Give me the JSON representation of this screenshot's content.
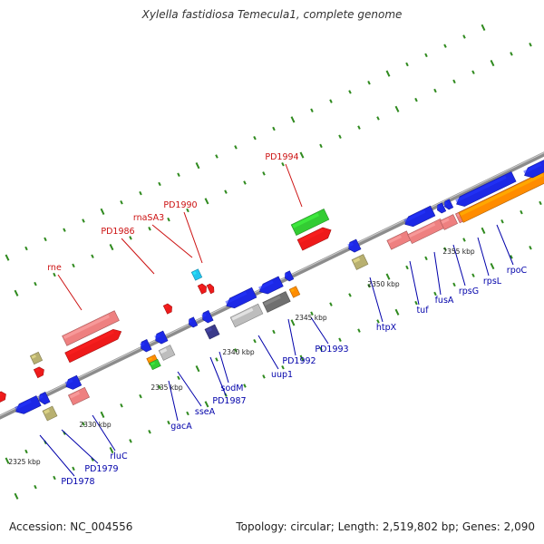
{
  "title": "Xylella fastidiosa Temecula1, complete genome",
  "footer": {
    "accession": "Accession: NC_004556",
    "topology": "Topology: circular; Length: 2,519,802 bp; Genes: 2,090"
  },
  "colors": {
    "backbone": "#8c8c8c",
    "tick": "#2f8a1e",
    "label_top": "#cc1111",
    "label_bottom": "#0000aa",
    "blue": "#1c28e6",
    "red": "#ee1a1a",
    "pink": "#ee8080",
    "green": "#33cc33",
    "orange": "#ff8c00",
    "gray": "#bdbdbd",
    "darkgray": "#707070",
    "olive": "#b8b070",
    "cyan": "#22c4ee",
    "navy": "#3a3a8a"
  },
  "scale_labels": [
    "2325 kbp",
    "2330 kbp",
    "2335 kbp",
    "2340 kbp",
    "2345 kbp",
    "2350 kbp",
    "2355 kbp"
  ],
  "top_genes": [
    {
      "label": "PD1994"
    },
    {
      "label": "PD1990"
    },
    {
      "label": "rnaSA3"
    },
    {
      "label": "PD1986"
    },
    {
      "label": "rne"
    }
  ],
  "bottom_genes": [
    {
      "label": "rpoC"
    },
    {
      "label": "rpsL"
    },
    {
      "label": "rpsG"
    },
    {
      "label": "fusA"
    },
    {
      "label": "tuf"
    },
    {
      "label": "htpX"
    },
    {
      "label": "PD1993"
    },
    {
      "label": "PD1992"
    },
    {
      "label": "uup1"
    },
    {
      "label": "sodM"
    },
    {
      "label": "PD1987"
    },
    {
      "label": "sseA"
    },
    {
      "label": "gacA"
    },
    {
      "label": "rluC"
    },
    {
      "label": "PD1979"
    },
    {
      "label": "PD1978"
    }
  ]
}
